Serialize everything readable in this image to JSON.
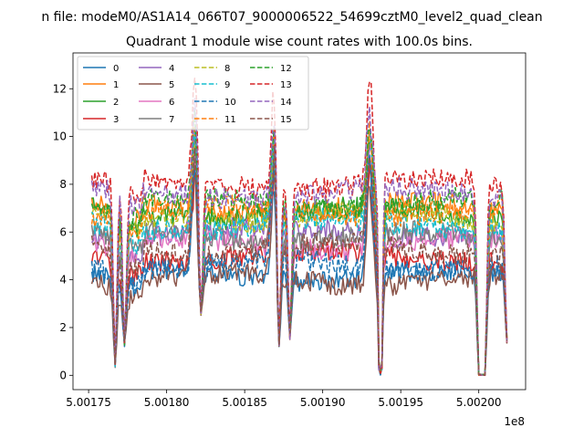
{
  "chart_data": {
    "type": "line",
    "suptitle": "n file: modeM0/AS1A14_066T07_9000006522_54699cztM0_level2_quad_clean",
    "title": "Quadrant 1 module wise count rates with 100.0s bins.",
    "xlabel": "",
    "ylabel": "",
    "x_offset_text": "1e8",
    "xlim": [
      500174000,
      500203000
    ],
    "ylim": [
      -0.6,
      13.5
    ],
    "x_start": 500175200,
    "x_end": 500201800,
    "bin_seconds": 100,
    "x_ticks": [
      500175000,
      500180000,
      500185000,
      500190000,
      500195000,
      500200000
    ],
    "x_tick_labels": [
      "5.00175",
      "5.00180",
      "5.00185",
      "5.00190",
      "5.00195",
      "5.00200"
    ],
    "y_ticks": [
      0,
      2,
      4,
      6,
      8,
      10,
      12
    ],
    "y_tick_labels": [
      "0",
      "2",
      "4",
      "6",
      "8",
      "10",
      "12"
    ],
    "grid": false,
    "legend_position": "top-left",
    "legend_columns": 4,
    "series": [
      {
        "name": "0",
        "color": "#1f77b4",
        "style": "solid",
        "base": 4.2,
        "peak": 9.5
      },
      {
        "name": "1",
        "color": "#ff7f0e",
        "style": "solid",
        "base": 7.0,
        "peak": 10.5
      },
      {
        "name": "2",
        "color": "#2ca02c",
        "style": "solid",
        "base": 6.8,
        "peak": 10.0
      },
      {
        "name": "3",
        "color": "#d62728",
        "style": "solid",
        "base": 5.0,
        "peak": 9.0
      },
      {
        "name": "4",
        "color": "#9467bd",
        "style": "solid",
        "base": 6.0,
        "peak": 10.5
      },
      {
        "name": "5",
        "color": "#8c564b",
        "style": "solid",
        "base": 4.0,
        "peak": 9.0
      },
      {
        "name": "6",
        "color": "#e377c2",
        "style": "solid",
        "base": 5.5,
        "peak": 10.0
      },
      {
        "name": "7",
        "color": "#7f7f7f",
        "style": "solid",
        "base": 5.8,
        "peak": 10.0
      },
      {
        "name": "8",
        "color": "#bcbd22",
        "style": "dashed",
        "base": 6.6,
        "peak": 10.5
      },
      {
        "name": "9",
        "color": "#17becf",
        "style": "dashed",
        "base": 6.3,
        "peak": 10.5
      },
      {
        "name": "10",
        "color": "#1f77b4",
        "style": "dashed",
        "base": 4.6,
        "peak": 9.5
      },
      {
        "name": "11",
        "color": "#ff7f0e",
        "style": "dashed",
        "base": 6.9,
        "peak": 11.0
      },
      {
        "name": "12",
        "color": "#2ca02c",
        "style": "dashed",
        "base": 7.2,
        "peak": 11.0
      },
      {
        "name": "13",
        "color": "#d62728",
        "style": "dashed",
        "base": 8.0,
        "peak": 12.8
      },
      {
        "name": "14",
        "color": "#9467bd",
        "style": "dashed",
        "base": 7.6,
        "peak": 11.5
      },
      {
        "name": "15",
        "color": "#8c564b",
        "style": "dashed",
        "base": 5.3,
        "peak": 10.0
      }
    ],
    "dips": [
      {
        "x": 500176700,
        "value": 0.3
      },
      {
        "x": 500177300,
        "value": 1.2
      },
      {
        "x": 500182200,
        "value": 2.5
      },
      {
        "x": 500187200,
        "value": 1.2
      },
      {
        "x": 500187900,
        "value": 1.5
      },
      {
        "x": 500193700,
        "value": 0.0
      },
      {
        "x": 500200000,
        "value": 0.0
      },
      {
        "x": 500200400,
        "value": 0.0
      },
      {
        "x": 500201800,
        "value": 1.3
      }
    ],
    "peaks": [
      {
        "x": 500181800
      },
      {
        "x": 500186900
      },
      {
        "x": 500193000
      }
    ]
  }
}
